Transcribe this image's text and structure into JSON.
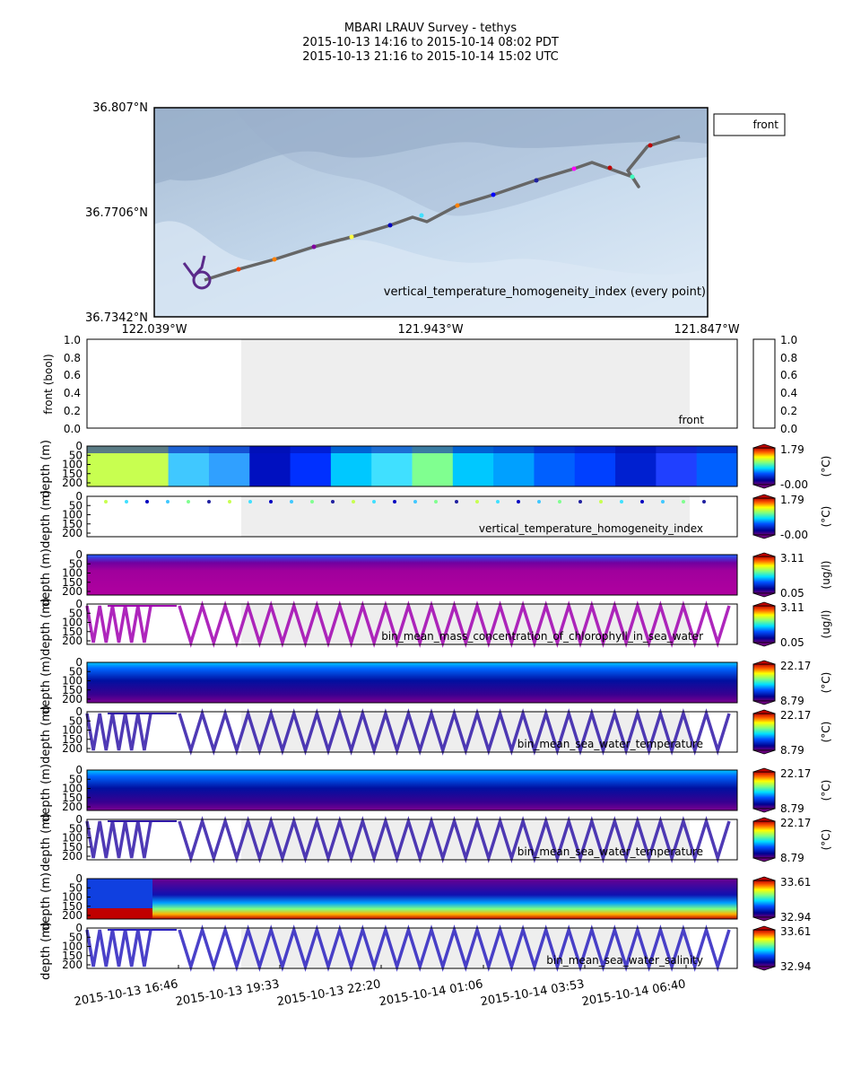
{
  "header": {
    "title": "MBARI LRAUV Survey - tethys",
    "range_pdt": "2015-10-13 14:16  to  2015-10-14 08:02 PDT",
    "range_utc": "2015-10-13 21:16  to  2015-10-14 15:02 UTC"
  },
  "map": {
    "lat_ticks": [
      "36.807°N",
      "36.7706°N",
      "36.7342°N"
    ],
    "lon_ticks": [
      "122.039°W",
      "121.943°W",
      "121.847°W"
    ],
    "legend_label": "front",
    "annotation": "vertical_temperature_homogeneity_index (every point)"
  },
  "time_ticks": [
    "2015-10-13 16:46",
    "2015-10-13 19:33",
    "2015-10-13 22:20",
    "2015-10-14 01:06",
    "2015-10-14 03:53",
    "2015-10-14 06:40"
  ],
  "front_panel": {
    "ylabel": "front (bool)",
    "yticks": [
      "1.0",
      "0.8",
      "0.6",
      "0.4",
      "0.2",
      "0.0"
    ],
    "label": "front",
    "cbar_ticks": [
      "1.0",
      "0.8",
      "0.6",
      "0.4",
      "0.2",
      "0.0"
    ]
  },
  "depth_ylabel": "depth (m)",
  "panels": [
    {
      "kind": "section",
      "yticks": [
        "0",
        "50",
        "100",
        "150",
        "200"
      ],
      "cmax": "1.79",
      "cmin": "-0.00",
      "unit": "(°C)",
      "label": ""
    },
    {
      "kind": "points",
      "yticks": [
        "0",
        "50",
        "100",
        "150",
        "200"
      ],
      "cmax": "1.79",
      "cmin": "-0.00",
      "unit": "(°C)",
      "label": "vertical_temperature_homogeneity_index"
    },
    {
      "kind": "section",
      "yticks": [
        "0",
        "50",
        "100",
        "150",
        "200"
      ],
      "cmax": "3.11",
      "cmin": "0.05",
      "unit": "(ug/l)",
      "label": ""
    },
    {
      "kind": "zigzag",
      "yticks": [
        "0",
        "50",
        "100",
        "150",
        "200"
      ],
      "cmax": "3.11",
      "cmin": "0.05",
      "unit": "(ug/l)",
      "label": "bin_mean_mass_concentration_of_chlorophyll_in_sea_water"
    },
    {
      "kind": "section",
      "yticks": [
        "0",
        "50",
        "100",
        "150",
        "200"
      ],
      "cmax": "22.17",
      "cmin": "8.79",
      "unit": "(°C)",
      "label": ""
    },
    {
      "kind": "zigzag",
      "yticks": [
        "0",
        "50",
        "100",
        "150",
        "200"
      ],
      "cmax": "22.17",
      "cmin": "8.79",
      "unit": "(°C)",
      "label": "bin_mean_sea_water_temperature"
    },
    {
      "kind": "section",
      "yticks": [
        "0",
        "50",
        "100",
        "150",
        "200"
      ],
      "cmax": "22.17",
      "cmin": "8.79",
      "unit": "(°C)",
      "label": ""
    },
    {
      "kind": "zigzag",
      "yticks": [
        "0",
        "50",
        "100",
        "150",
        "200"
      ],
      "cmax": "22.17",
      "cmin": "8.79",
      "unit": "(°C)",
      "label": "bin_mean_sea_water_temperature"
    },
    {
      "kind": "section",
      "yticks": [
        "0",
        "50",
        "100",
        "150",
        "200"
      ],
      "cmax": "33.61",
      "cmin": "32.94",
      "unit": "",
      "label": ""
    },
    {
      "kind": "zigzag",
      "yticks": [
        "0",
        "50",
        "100",
        "150",
        "200"
      ],
      "cmax": "33.61",
      "cmin": "32.94",
      "unit": "",
      "label": "bin_mean_sea_water_salinity"
    }
  ],
  "chart_data": {
    "type": "heatmap",
    "title": "MBARI LRAUV Survey - tethys",
    "x_range": [
      "2015-10-13 14:16",
      "2015-10-14 08:02"
    ],
    "depth_range_m": [
      0,
      210
    ],
    "front_shaded_interval": [
      "2015-10-13 18:04",
      "2015-10-14 06:50"
    ],
    "colorbar_ranges": {
      "vertical_temperature_homogeneity_index": [
        0.0,
        1.79
      ],
      "bin_mean_mass_concentration_of_chlorophyll_in_sea_water": [
        0.05,
        3.11
      ],
      "bin_mean_sea_water_temperature": [
        8.79,
        22.17
      ],
      "bin_mean_sea_water_salinity": [
        32.94,
        33.61
      ]
    },
    "map_extent": {
      "lat": [
        36.7342,
        36.807
      ],
      "lon": [
        -122.039,
        -121.847
      ]
    }
  },
  "colors": {
    "shade": "#eeeeee",
    "track": "#666666"
  }
}
